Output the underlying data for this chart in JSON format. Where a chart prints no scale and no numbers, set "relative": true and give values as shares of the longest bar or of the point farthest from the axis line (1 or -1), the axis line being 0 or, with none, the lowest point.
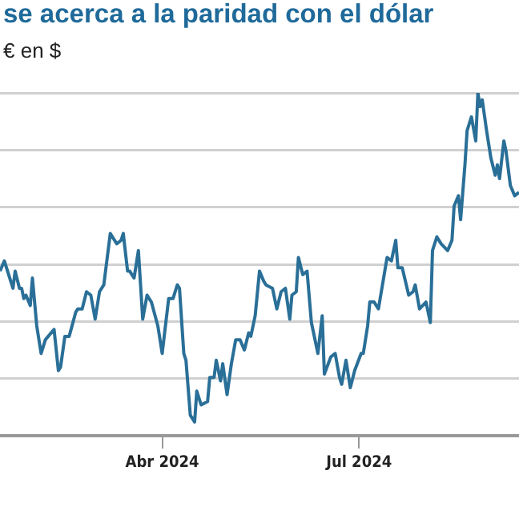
{
  "chart_data": {
    "type": "line",
    "title": "se acerca a la paridad con el dólar",
    "subtitle": "€ en $",
    "relative": true,
    "grid": "y",
    "marker": "none",
    "line_style": "solid",
    "xlim": [
      "2024-01-17",
      "2024-09-13"
    ],
    "xticks": [
      {
        "value": "2024-04-01",
        "label": "Abr 2024"
      },
      {
        "value": "2024-07-01",
        "label": "Jul 2024"
      }
    ],
    "x": [
      "2024-01-17",
      "2024-01-19",
      "2024-01-21",
      "2024-01-23",
      "2024-01-24",
      "2024-01-26",
      "2024-01-27",
      "2024-01-28",
      "2024-01-29",
      "2024-01-31",
      "2024-02-01",
      "2024-02-03",
      "2024-02-05",
      "2024-02-07",
      "2024-02-11",
      "2024-02-13",
      "2024-02-14",
      "2024-02-16",
      "2024-02-18",
      "2024-02-21",
      "2024-02-22",
      "2024-02-24",
      "2024-02-26",
      "2024-02-28",
      "2024-03-01",
      "2024-03-03",
      "2024-03-05",
      "2024-03-08",
      "2024-03-11",
      "2024-03-13",
      "2024-03-14",
      "2024-03-16",
      "2024-03-17",
      "2024-03-19",
      "2024-03-21",
      "2024-03-23",
      "2024-03-25",
      "2024-03-27",
      "2024-03-30",
      "2024-04-01",
      "2024-04-04",
      "2024-04-06",
      "2024-04-08",
      "2024-04-09",
      "2024-04-11",
      "2024-04-12",
      "2024-04-14",
      "2024-04-16",
      "2024-04-17",
      "2024-04-19",
      "2024-04-22",
      "2024-04-23",
      "2024-04-25",
      "2024-04-26",
      "2024-04-28",
      "2024-04-29",
      "2024-05-01",
      "2024-05-03",
      "2024-05-05",
      "2024-05-07",
      "2024-05-09",
      "2024-05-11",
      "2024-05-12",
      "2024-05-14",
      "2024-05-16",
      "2024-05-18",
      "2024-05-19",
      "2024-05-22",
      "2024-05-24",
      "2024-05-26",
      "2024-05-28",
      "2024-05-30",
      "2024-05-31",
      "2024-06-02",
      "2024-06-03",
      "2024-06-05",
      "2024-06-07",
      "2024-06-09",
      "2024-06-12",
      "2024-06-14",
      "2024-06-15",
      "2024-06-18",
      "2024-06-20",
      "2024-06-22",
      "2024-06-23",
      "2024-06-25",
      "2024-06-27",
      "2024-06-29",
      "2024-07-02",
      "2024-07-03",
      "2024-07-05",
      "2024-07-06",
      "2024-07-08",
      "2024-07-10",
      "2024-07-14",
      "2024-07-16",
      "2024-07-18",
      "2024-07-19",
      "2024-07-21",
      "2024-07-24",
      "2024-07-26",
      "2024-07-27",
      "2024-07-29",
      "2024-08-01",
      "2024-08-03",
      "2024-08-04",
      "2024-08-06",
      "2024-08-08",
      "2024-08-11",
      "2024-08-13",
      "2024-08-14",
      "2024-08-16",
      "2024-08-17",
      "2024-08-19",
      "2024-08-20",
      "2024-08-22",
      "2024-08-24",
      "2024-08-25",
      "2024-08-26",
      "2024-08-27",
      "2024-08-29",
      "2024-08-31",
      "2024-09-02",
      "2024-09-03",
      "2024-09-04",
      "2024-09-06",
      "2024-09-07",
      "2024-09-09",
      "2024-09-11",
      "2024-09-13"
    ],
    "series": [
      {
        "color": "#2a6f97",
        "values": [
          0.48,
          0.51,
          0.47,
          0.43,
          0.48,
          0.43,
          0.43,
          0.4,
          0.41,
          0.38,
          0.46,
          0.32,
          0.24,
          0.28,
          0.31,
          0.19,
          0.2,
          0.29,
          0.29,
          0.36,
          0.37,
          0.37,
          0.42,
          0.41,
          0.34,
          0.42,
          0.44,
          0.59,
          0.56,
          0.57,
          0.59,
          0.48,
          0.48,
          0.46,
          0.54,
          0.34,
          0.41,
          0.39,
          0.32,
          0.24,
          0.4,
          0.4,
          0.44,
          0.43,
          0.24,
          0.22,
          0.06,
          0.04,
          0.13,
          0.09,
          0.1,
          0.17,
          0.17,
          0.22,
          0.16,
          0.21,
          0.12,
          0.21,
          0.28,
          0.28,
          0.25,
          0.3,
          0.29,
          0.35,
          0.48,
          0.45,
          0.44,
          0.43,
          0.37,
          0.42,
          0.43,
          0.34,
          0.41,
          0.42,
          0.52,
          0.47,
          0.48,
          0.33,
          0.24,
          0.35,
          0.18,
          0.23,
          0.24,
          0.17,
          0.15,
          0.22,
          0.14,
          0.19,
          0.24,
          0.24,
          0.32,
          0.39,
          0.39,
          0.37,
          0.52,
          0.51,
          0.57,
          0.49,
          0.49,
          0.41,
          0.42,
          0.44,
          0.37,
          0.39,
          0.33,
          0.54,
          0.58,
          0.56,
          0.54,
          0.57,
          0.67,
          0.7,
          0.63,
          0.79,
          0.89,
          0.93,
          0.86,
          1,
          0.96,
          0.98,
          0.89,
          0.81,
          0.76,
          0.79,
          0.75,
          0.86,
          0.83,
          0.73,
          0.7,
          0.71
        ]
      }
    ]
  }
}
